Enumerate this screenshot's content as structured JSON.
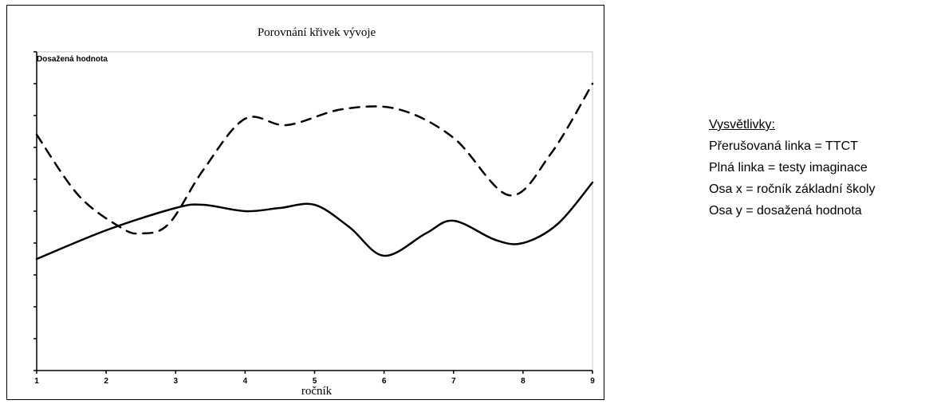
{
  "chart_data": {
    "type": "line",
    "title": "Porovnání křivek vývoje",
    "ylabel": "Dosažená hodnota",
    "xlabel": "ročník",
    "x": [
      1,
      2,
      3,
      4,
      5,
      6,
      7,
      8,
      9
    ],
    "xlim": [
      1,
      9
    ],
    "ylim": [
      0,
      10
    ],
    "y_tick_count": 10,
    "grid": false,
    "series": [
      {
        "style": "dashed",
        "color": "#000000",
        "points": [
          [
            1,
            7.4
          ],
          [
            1.6,
            5.5
          ],
          [
            2.2,
            4.5
          ],
          [
            2.5,
            4.3
          ],
          [
            2.9,
            4.6
          ],
          [
            3.4,
            6.3
          ],
          [
            4.0,
            7.9
          ],
          [
            4.6,
            7.7
          ],
          [
            5.4,
            8.2
          ],
          [
            6.2,
            8.2
          ],
          [
            7.0,
            7.3
          ],
          [
            7.8,
            5.5
          ],
          [
            8.4,
            6.8
          ],
          [
            9.0,
            9.0
          ]
        ]
      },
      {
        "style": "solid",
        "color": "#000000",
        "points": [
          [
            1,
            3.5
          ],
          [
            2.0,
            4.4
          ],
          [
            3.0,
            5.1
          ],
          [
            3.4,
            5.2
          ],
          [
            4.0,
            5.0
          ],
          [
            4.5,
            5.1
          ],
          [
            5.0,
            5.2
          ],
          [
            5.5,
            4.5
          ],
          [
            6.0,
            3.6
          ],
          [
            6.6,
            4.3
          ],
          [
            7.0,
            4.7
          ],
          [
            7.6,
            4.1
          ],
          [
            8.0,
            4.0
          ],
          [
            8.5,
            4.6
          ],
          [
            9.0,
            5.9
          ]
        ]
      }
    ]
  },
  "legend": {
    "heading": "Vysvětlivky:",
    "lines": [
      "Přerušovaná linka = TTCT",
      "Plná linka = testy imaginace",
      "Osa x = ročník základní školy",
      "Osa y = dosažená hodnota"
    ]
  }
}
